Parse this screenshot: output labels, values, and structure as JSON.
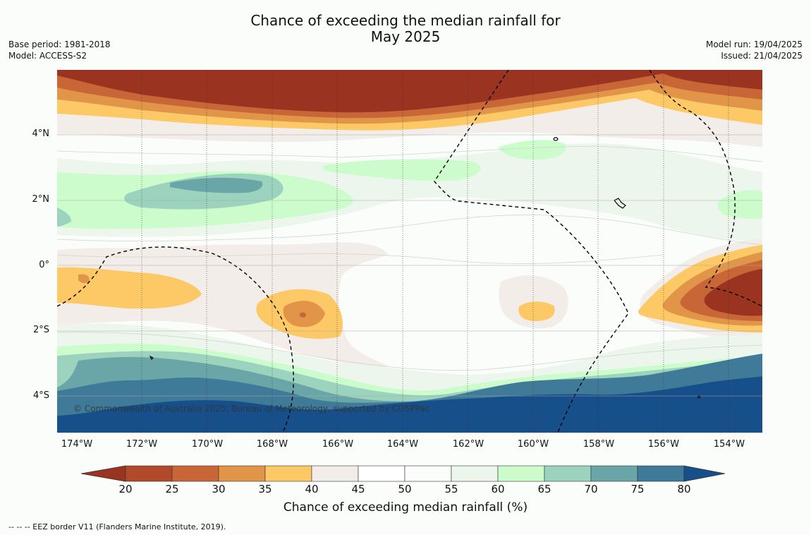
{
  "title_line1": "Chance of exceeding the median rainfall for",
  "title_line2": "May 2025",
  "base_period": "Base period: 1981-2018",
  "model": "Model: ACCESS-S2",
  "model_run": "Model run: 19/04/2025",
  "issued": "Issued: 21/04/2025",
  "copyright": "© Commonwealth of Australia 2025, Bureau of Meteorology, supported by COSPPac",
  "lat_labels": [
    "4°N",
    "2°N",
    "0°",
    "2°S",
    "4°S"
  ],
  "lon_labels": [
    "174°W",
    "172°W",
    "170°W",
    "168°W",
    "166°W",
    "164°W",
    "162°W",
    "160°W",
    "158°W",
    "156°W",
    "154°W"
  ],
  "colorbar": {
    "title": "Chance of exceeding median rainfall (%)",
    "ticks": [
      "20",
      "25",
      "30",
      "35",
      "40",
      "45",
      "50",
      "55",
      "60",
      "65",
      "70",
      "75",
      "80"
    ],
    "colors": [
      "#9a3421",
      "#b14a2a",
      "#c96638",
      "#e19549",
      "#fdc966",
      "#f2ede8",
      "#ffffff",
      "#fbfdfb",
      "#ecf6ec",
      "#ccfccc",
      "#9cd3be",
      "#6aa6a8",
      "#3f7a99",
      "#174f8a"
    ]
  },
  "footnote": "--  --  -- EEZ border V11 (Flanders Marine Institute, 2019)."
}
